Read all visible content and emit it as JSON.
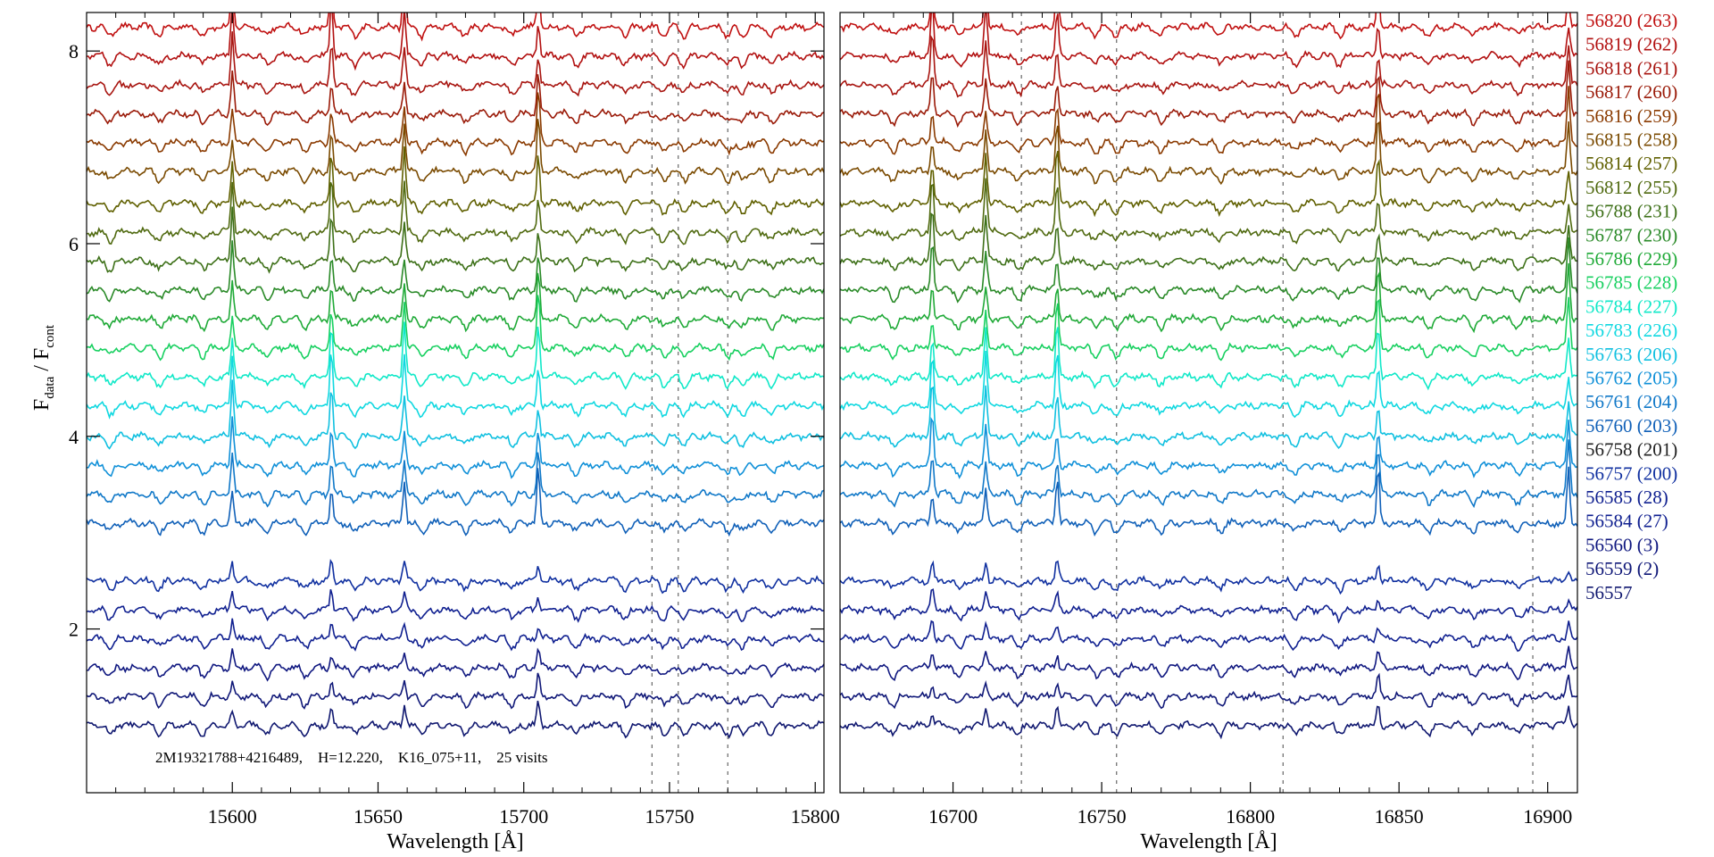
{
  "chart_data": {
    "type": "line",
    "ylabel_main": "F",
    "ylabel_sub1": "data",
    "ylabel_sep": " / F",
    "ylabel_sub2": "cont",
    "ylim": [
      0.3,
      8.4
    ],
    "yticks": [
      2,
      4,
      6,
      8
    ],
    "annotation": "2M19321788+4216489,    H=12.220,    K16_075+11,    25 visits",
    "panels": [
      {
        "xlabel": "Wavelength [Å]",
        "xlim": [
          15550,
          15803
        ],
        "xticks": [
          15600,
          15650,
          15700,
          15750,
          15800
        ],
        "reference_lines": [
          15744,
          15753,
          15770
        ],
        "emission_lines": [
          15600,
          15634,
          15659,
          15705
        ],
        "absorption_features": [
          15558,
          15575,
          15590,
          15612,
          15625,
          15642,
          15665,
          15680,
          15696,
          15718,
          15735,
          15748,
          15755,
          15770,
          15775,
          15785
        ]
      },
      {
        "xlabel": "Wavelength [Å]",
        "xlim": [
          16662,
          16910
        ],
        "xticks": [
          16700,
          16750,
          16800,
          16850,
          16900
        ],
        "reference_lines": [
          16723,
          16755,
          16811,
          16895
        ],
        "emission_lines": [
          16693,
          16711,
          16735,
          16843,
          16907
        ],
        "absorption_features": [
          16680,
          16702,
          16722,
          16748,
          16755,
          16770,
          16790,
          16815,
          16830,
          16860,
          16875,
          16890
        ]
      }
    ],
    "series": [
      {
        "label": "56820 (263)",
        "offset": 8.25,
        "color": "#c01010"
      },
      {
        "label": "56819 (262)",
        "offset": 7.95,
        "color": "#b21010"
      },
      {
        "label": "56818 (261)",
        "offset": 7.65,
        "color": "#a81510"
      },
      {
        "label": "56817 (260)",
        "offset": 7.35,
        "color": "#9a1a08"
      },
      {
        "label": "56816 (259)",
        "offset": 7.05,
        "color": "#8a3a00"
      },
      {
        "label": "56815 (258)",
        "offset": 6.75,
        "color": "#7a4a00"
      },
      {
        "label": "56814 (257)",
        "offset": 6.42,
        "color": "#606000"
      },
      {
        "label": "56812 (255)",
        "offset": 6.12,
        "color": "#506a10"
      },
      {
        "label": "56788 (231)",
        "offset": 5.82,
        "color": "#3d7018"
      },
      {
        "label": "56787 (230)",
        "offset": 5.52,
        "color": "#2a8a28"
      },
      {
        "label": "56786 (229)",
        "offset": 5.22,
        "color": "#20aa38"
      },
      {
        "label": "56785 (228)",
        "offset": 4.92,
        "color": "#18d060"
      },
      {
        "label": "56784 (227)",
        "offset": 4.62,
        "color": "#10e8c8"
      },
      {
        "label": "56783 (226)",
        "offset": 4.32,
        "color": "#10d8e0"
      },
      {
        "label": "56763 (206)",
        "offset": 4.0,
        "color": "#10c0e0"
      },
      {
        "label": "56762 (205)",
        "offset": 3.7,
        "color": "#1090d8"
      },
      {
        "label": "56761 (204)",
        "offset": 3.4,
        "color": "#1078c8"
      },
      {
        "label": "56760 (203)",
        "offset": 3.1,
        "color": "#1060b8"
      },
      {
        "label": "56758 (201)",
        "offset": null,
        "color": "#222222"
      },
      {
        "label": "56757 (200)",
        "offset": 2.5,
        "color": "#1030a0"
      },
      {
        "label": "56585 (28)",
        "offset": 2.2,
        "color": "#102090"
      },
      {
        "label": "56584 (27)",
        "offset": 1.9,
        "color": "#102090"
      },
      {
        "label": "56560 (3)",
        "offset": 1.6,
        "color": "#101880"
      },
      {
        "label": "56559 (2)",
        "offset": 1.3,
        "color": "#101878"
      },
      {
        "label": "56557",
        "offset": 1.0,
        "color": "#101870"
      }
    ]
  }
}
